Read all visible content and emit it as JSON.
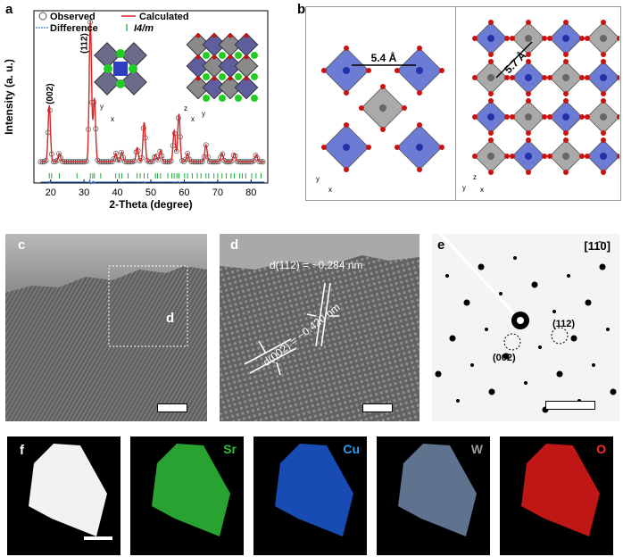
{
  "panels": {
    "a": "a",
    "b": "b",
    "c": "c",
    "d": "d",
    "e": "e",
    "f": "f"
  },
  "panel_a": {
    "legend": {
      "observed": "Observed",
      "calculated": "Calculated",
      "difference": "Difference",
      "space_group": "I4/m"
    },
    "peak_labels": {
      "p002": "(002)",
      "p112": "(112)"
    },
    "inset_axes_left": {
      "y": "y",
      "x": "x"
    },
    "inset_axes_right": {
      "z": "z",
      "x": "x",
      "y": "y"
    },
    "colors": {
      "observed": "#555555",
      "calculated": "#d62728",
      "difference": "#1f5fbf",
      "bragg": "#22aa44"
    }
  },
  "panel_b": {
    "left_distance": "5.4 Å",
    "right_distance": "5.7 Å",
    "left_axes": {
      "y": "y",
      "x": "x"
    },
    "right_axes": {
      "z": "z",
      "y": "y",
      "x": "x"
    },
    "colors": {
      "Cu": "#3b4fc4",
      "W": "#8d8d8d",
      "O": "#cc1111"
    }
  },
  "panel_c": {
    "inset_label": "d"
  },
  "panel_d": {
    "d112": "d(112) = ~0.284 nm",
    "d002": "d(002) = ~0.420 nm"
  },
  "panel_e": {
    "zone_axis": "[11̄0]",
    "spot_112": "(112)",
    "spot_002": "(002)"
  },
  "panel_f": {
    "maps": [
      {
        "label": "",
        "color": "#ffffff"
      },
      {
        "label": "Sr",
        "color": "#2fbf3a"
      },
      {
        "label": "Cu",
        "color": "#1f5fe0"
      },
      {
        "label": "W",
        "color": "#7f9abf"
      },
      {
        "label": "O",
        "color": "#e01a1a"
      }
    ]
  },
  "chart_data": {
    "type": "line",
    "xlabel": "2-Theta (degree)",
    "ylabel": "Intensity (a. u.)",
    "xlim": [
      15,
      85
    ],
    "xticks": [
      20,
      30,
      40,
      50,
      60,
      70,
      80
    ],
    "series": [
      {
        "name": "Observed",
        "x": [
          19.6,
          22.6,
          31.9,
          33.1,
          39.5,
          41.3,
          45.9,
          48.0,
          51.4,
          52.9,
          57.0,
          58.4,
          61.0,
          66.5,
          71.3,
          75.0,
          81.5
        ],
        "y": [
          0.4,
          0.06,
          1.0,
          0.45,
          0.06,
          0.07,
          0.1,
          0.28,
          0.05,
          0.08,
          0.22,
          0.34,
          0.06,
          0.12,
          0.06,
          0.06,
          0.05
        ]
      },
      {
        "name": "Calculated",
        "x": [
          19.6,
          22.6,
          31.9,
          33.1,
          39.5,
          41.3,
          45.9,
          48.0,
          51.4,
          52.9,
          57.0,
          58.4,
          61.0,
          66.5,
          71.3,
          75.0,
          81.5
        ],
        "y": [
          0.4,
          0.06,
          1.0,
          0.45,
          0.06,
          0.07,
          0.1,
          0.28,
          0.05,
          0.08,
          0.22,
          0.34,
          0.06,
          0.12,
          0.06,
          0.06,
          0.05
        ]
      },
      {
        "name": "Difference",
        "x": [],
        "y": []
      }
    ],
    "bragg_positions": [
      19.6,
      20.3,
      22.6,
      27.9,
      31.9,
      32.6,
      33.1,
      35.0,
      39.5,
      40.5,
      41.3,
      43.2,
      45.9,
      46.8,
      48.0,
      49.1,
      51.4,
      52.0,
      52.9,
      55.1,
      56.3,
      57.0,
      57.8,
      58.4,
      60.1,
      61.0,
      62.4,
      63.9,
      65.0,
      66.5,
      67.3,
      68.9,
      70.0,
      71.3,
      72.6,
      74.0,
      75.0,
      76.6,
      77.4,
      78.4,
      80.2,
      81.5,
      83.0
    ]
  }
}
